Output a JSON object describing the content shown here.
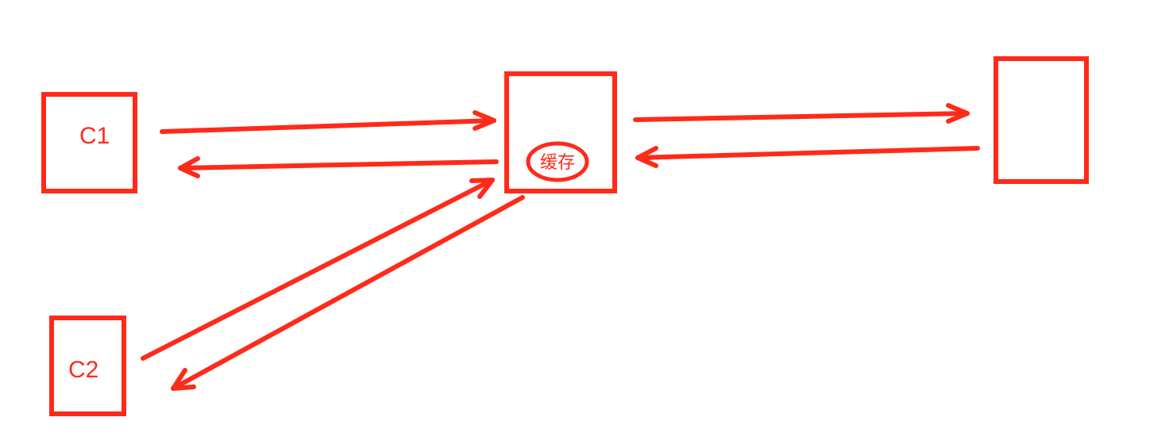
{
  "diagram": {
    "stroke_color": "#ff2a1a",
    "nodes": {
      "c1": {
        "label": "C1"
      },
      "c2": {
        "label": "C2"
      },
      "server": {
        "label": ""
      },
      "cache": {
        "badge": "缓存"
      }
    },
    "edges": [
      {
        "from": "c1",
        "to": "cache",
        "direction": "request"
      },
      {
        "from": "cache",
        "to": "c1",
        "direction": "response"
      },
      {
        "from": "cache",
        "to": "server",
        "direction": "request"
      },
      {
        "from": "server",
        "to": "cache",
        "direction": "response"
      },
      {
        "from": "c2",
        "to": "cache",
        "direction": "request"
      },
      {
        "from": "cache",
        "to": "c2",
        "direction": "response"
      }
    ]
  }
}
